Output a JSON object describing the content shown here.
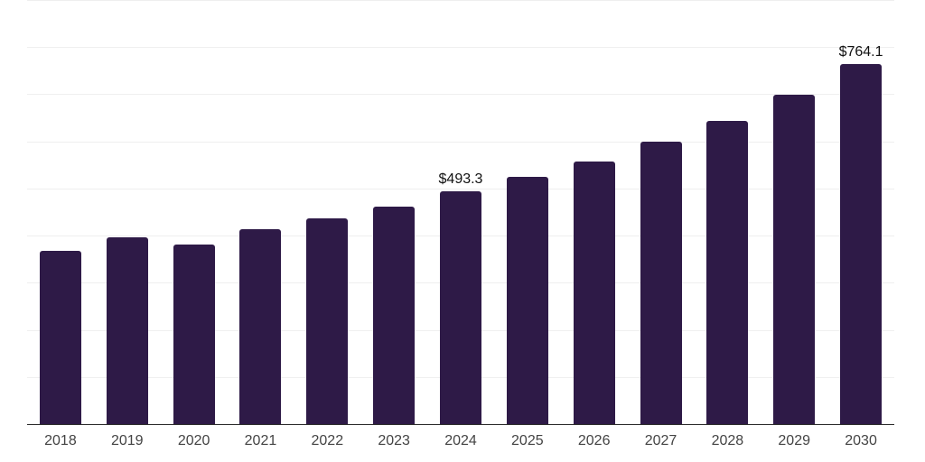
{
  "chart_data": {
    "type": "bar",
    "title": "",
    "xlabel": "",
    "ylabel": "",
    "categories": [
      "2018",
      "2019",
      "2020",
      "2021",
      "2022",
      "2023",
      "2024",
      "2025",
      "2026",
      "2027",
      "2028",
      "2029",
      "2030"
    ],
    "values": [
      368.0,
      397.0,
      381.3,
      413.6,
      436.0,
      461.9,
      493.3,
      524.6,
      558.2,
      600.0,
      643.6,
      699.6,
      764.1
    ],
    "value_labels": [
      "",
      "",
      "",
      "",
      "",
      "",
      "$493.3",
      "",
      "",
      "",
      "",
      "",
      "$764.1"
    ],
    "ylim": [
      0,
      900
    ],
    "grid_step": 100,
    "grid": true,
    "legend_position": "none",
    "bar_color": "#2E1A47",
    "grid_color": "#EFEFEF",
    "axis_line_color": "#2B2B2B",
    "tick_label_color": "#444444",
    "value_label_color": "#111111",
    "background_color": "#FFFFFF"
  }
}
